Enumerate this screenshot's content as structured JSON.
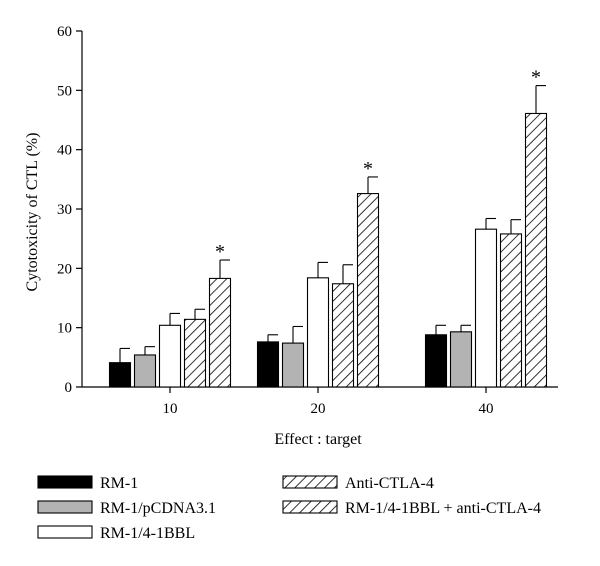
{
  "chart_data": {
    "type": "bar",
    "title": "",
    "xlabel": "Effect : target",
    "ylabel": "Cytotoxicity of CTL (%)",
    "ylim": [
      0,
      60
    ],
    "yticks": [
      0,
      10,
      20,
      30,
      40,
      50,
      60
    ],
    "categories": [
      "10",
      "20",
      "40"
    ],
    "series": [
      {
        "name": "RM-1",
        "fill": "black",
        "values": [
          4.1,
          7.6,
          8.8
        ],
        "errors": [
          2.4,
          1.2,
          1.6
        ]
      },
      {
        "name": "RM-1/pCDNA3.1",
        "fill": "gray",
        "values": [
          5.4,
          7.4,
          9.3
        ],
        "errors": [
          1.4,
          2.8,
          1.1
        ]
      },
      {
        "name": "RM-1/4-1BBL",
        "fill": "white",
        "values": [
          10.4,
          18.4,
          26.6
        ],
        "errors": [
          2.0,
          2.6,
          1.8
        ]
      },
      {
        "name": "Anti-CTLA-4",
        "fill": "hatch",
        "values": [
          11.4,
          17.4,
          25.8
        ],
        "errors": [
          1.7,
          3.2,
          2.4
        ]
      },
      {
        "name": "RM-1/4-1BBL + anti-CTLA-4",
        "fill": "hatch",
        "values": [
          18.3,
          32.6,
          46.1
        ],
        "errors": [
          3.1,
          2.8,
          4.7
        ]
      }
    ],
    "annotations": [
      {
        "text": "*",
        "category": "10",
        "series": "RM-1/4-1BBL + anti-CTLA-4"
      },
      {
        "text": "*",
        "category": "20",
        "series": "RM-1/4-1BBL + anti-CTLA-4"
      },
      {
        "text": "*",
        "category": "40",
        "series": "RM-1/4-1BBL + anti-CTLA-4"
      }
    ],
    "legend_position": "bottom",
    "grid": false,
    "colors": {
      "black": "#000000",
      "gray": "#b3b3b3",
      "white": "#ffffff",
      "hatch": "#000000"
    }
  }
}
